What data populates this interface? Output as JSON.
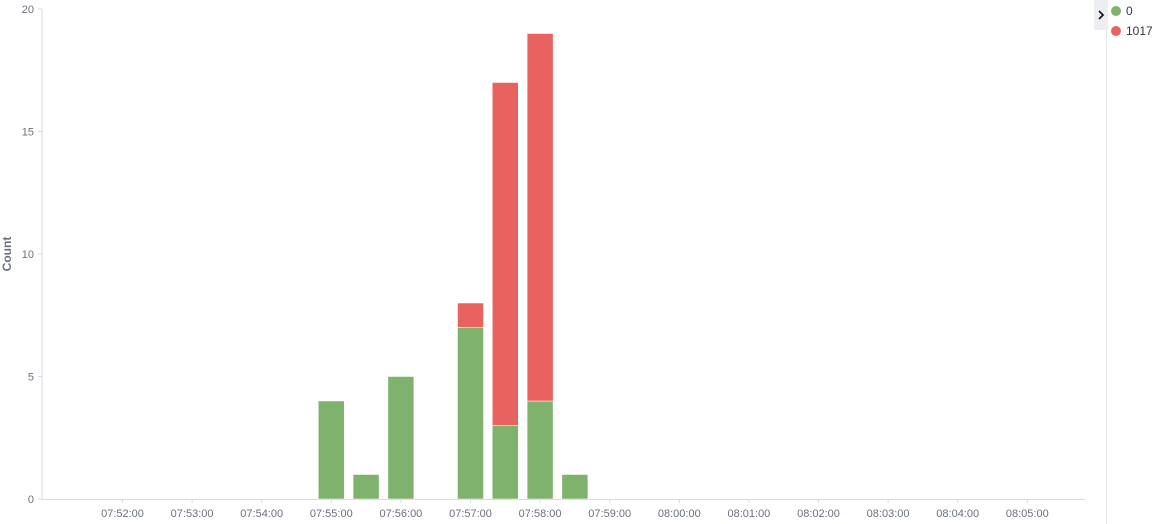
{
  "chart_data": {
    "type": "bar",
    "stacked": true,
    "ylabel": "Count",
    "xlabel": "",
    "ylim": [
      0,
      20
    ],
    "y_ticks": [
      "0",
      "5",
      "10",
      "15",
      "20"
    ],
    "x_tick_labels": [
      "07:52:00",
      "07:53:00",
      "07:54:00",
      "07:55:00",
      "07:56:00",
      "07:57:00",
      "07:58:00",
      "07:59:00",
      "08:00:00",
      "08:01:00",
      "08:02:00",
      "08:03:00",
      "08:04:00",
      "08:05:00"
    ],
    "categories": [
      "07:55:00",
      "07:55:30",
      "07:56:00",
      "07:56:30",
      "07:57:00",
      "07:57:30",
      "07:58:00",
      "07:58:30"
    ],
    "series": [
      {
        "name": "0",
        "color": "#7eb26d",
        "values": [
          4,
          1,
          5,
          0,
          7,
          3,
          4,
          1
        ]
      },
      {
        "name": "1017",
        "color": "#e8625f",
        "values": [
          0,
          0,
          0,
          0,
          1,
          14,
          15,
          0
        ]
      }
    ],
    "legend_position": "right",
    "grid": false
  },
  "legend": {
    "toggle_icon": "chevron-right-icon",
    "items": [
      {
        "label": "0",
        "color": "#7eb26d"
      },
      {
        "label": "1017",
        "color": "#e8625f"
      }
    ]
  }
}
